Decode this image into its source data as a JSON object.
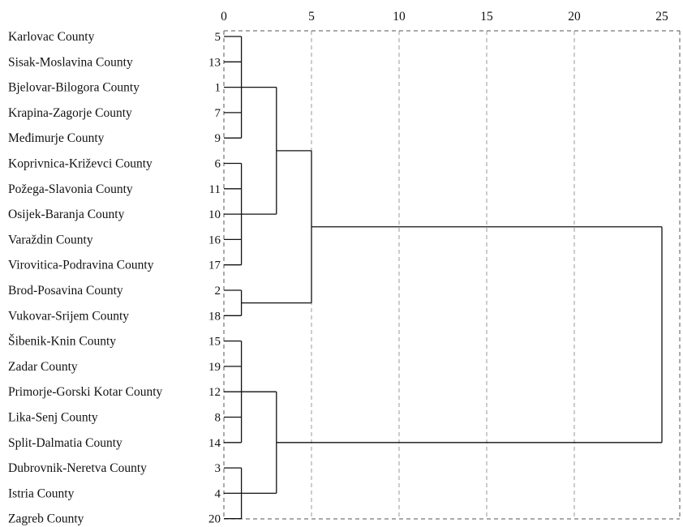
{
  "chart_data": {
    "type": "dendrogram",
    "x_ticks": [
      0,
      5,
      10,
      15,
      20,
      25
    ],
    "xlim": [
      0,
      25
    ],
    "axis_style": "dashed",
    "vertical_grid": "dashed",
    "line_color": "#111111",
    "leaves": [
      {
        "label": "Karlovac County",
        "id": "5"
      },
      {
        "label": "Sisak-Moslavina County",
        "id": "13"
      },
      {
        "label": "Bjelovar-Bilogora County",
        "id": "1"
      },
      {
        "label": "Krapina-Zagorje County",
        "id": "7"
      },
      {
        "label": "Međimurje County",
        "id": "9"
      },
      {
        "label": "Koprivnica-Križevci County",
        "id": "6"
      },
      {
        "label": "Požega-Slavonia County",
        "id": "11"
      },
      {
        "label": "Osijek-Baranja County",
        "id": "10"
      },
      {
        "label": "Varaždin County",
        "id": "16"
      },
      {
        "label": "Virovitica-Podravina County",
        "id": "17"
      },
      {
        "label": "Brod-Posavina County",
        "id": "2"
      },
      {
        "label": "Vukovar-Srijem County",
        "id": "18"
      },
      {
        "label": "Šibenik-Knin County",
        "id": "15"
      },
      {
        "label": "Zadar County",
        "id": "19"
      },
      {
        "label": "Primorje-Gorski Kotar County",
        "id": "12"
      },
      {
        "label": "Lika-Senj County",
        "id": "8"
      },
      {
        "label": "Split-Dalmatia County",
        "id": "14"
      },
      {
        "label": "Dubrovnik-Neretva County",
        "id": "3"
      },
      {
        "label": "Istria County",
        "id": "4"
      },
      {
        "label": "Zagreb County",
        "id": "20"
      }
    ],
    "merges": [
      {
        "id": "A",
        "height": 1,
        "children": [
          0,
          1,
          2,
          3,
          4
        ]
      },
      {
        "id": "B",
        "height": 1,
        "children": [
          5,
          6,
          7,
          8,
          9
        ]
      },
      {
        "id": "C",
        "height": 1,
        "children": [
          10,
          11
        ]
      },
      {
        "id": "D",
        "height": 1,
        "children": [
          12,
          13,
          14,
          15,
          16
        ]
      },
      {
        "id": "E",
        "height": 1,
        "children": [
          17,
          18,
          19
        ]
      },
      {
        "id": "F",
        "height": 3,
        "children": [
          "A",
          "B"
        ]
      },
      {
        "id": "G",
        "height": 5,
        "children": [
          "F",
          "C"
        ]
      },
      {
        "id": "H",
        "height": 3,
        "children": [
          "D",
          "E"
        ]
      },
      {
        "id": "I",
        "height": 25,
        "children": [
          "G",
          "H"
        ]
      }
    ]
  }
}
